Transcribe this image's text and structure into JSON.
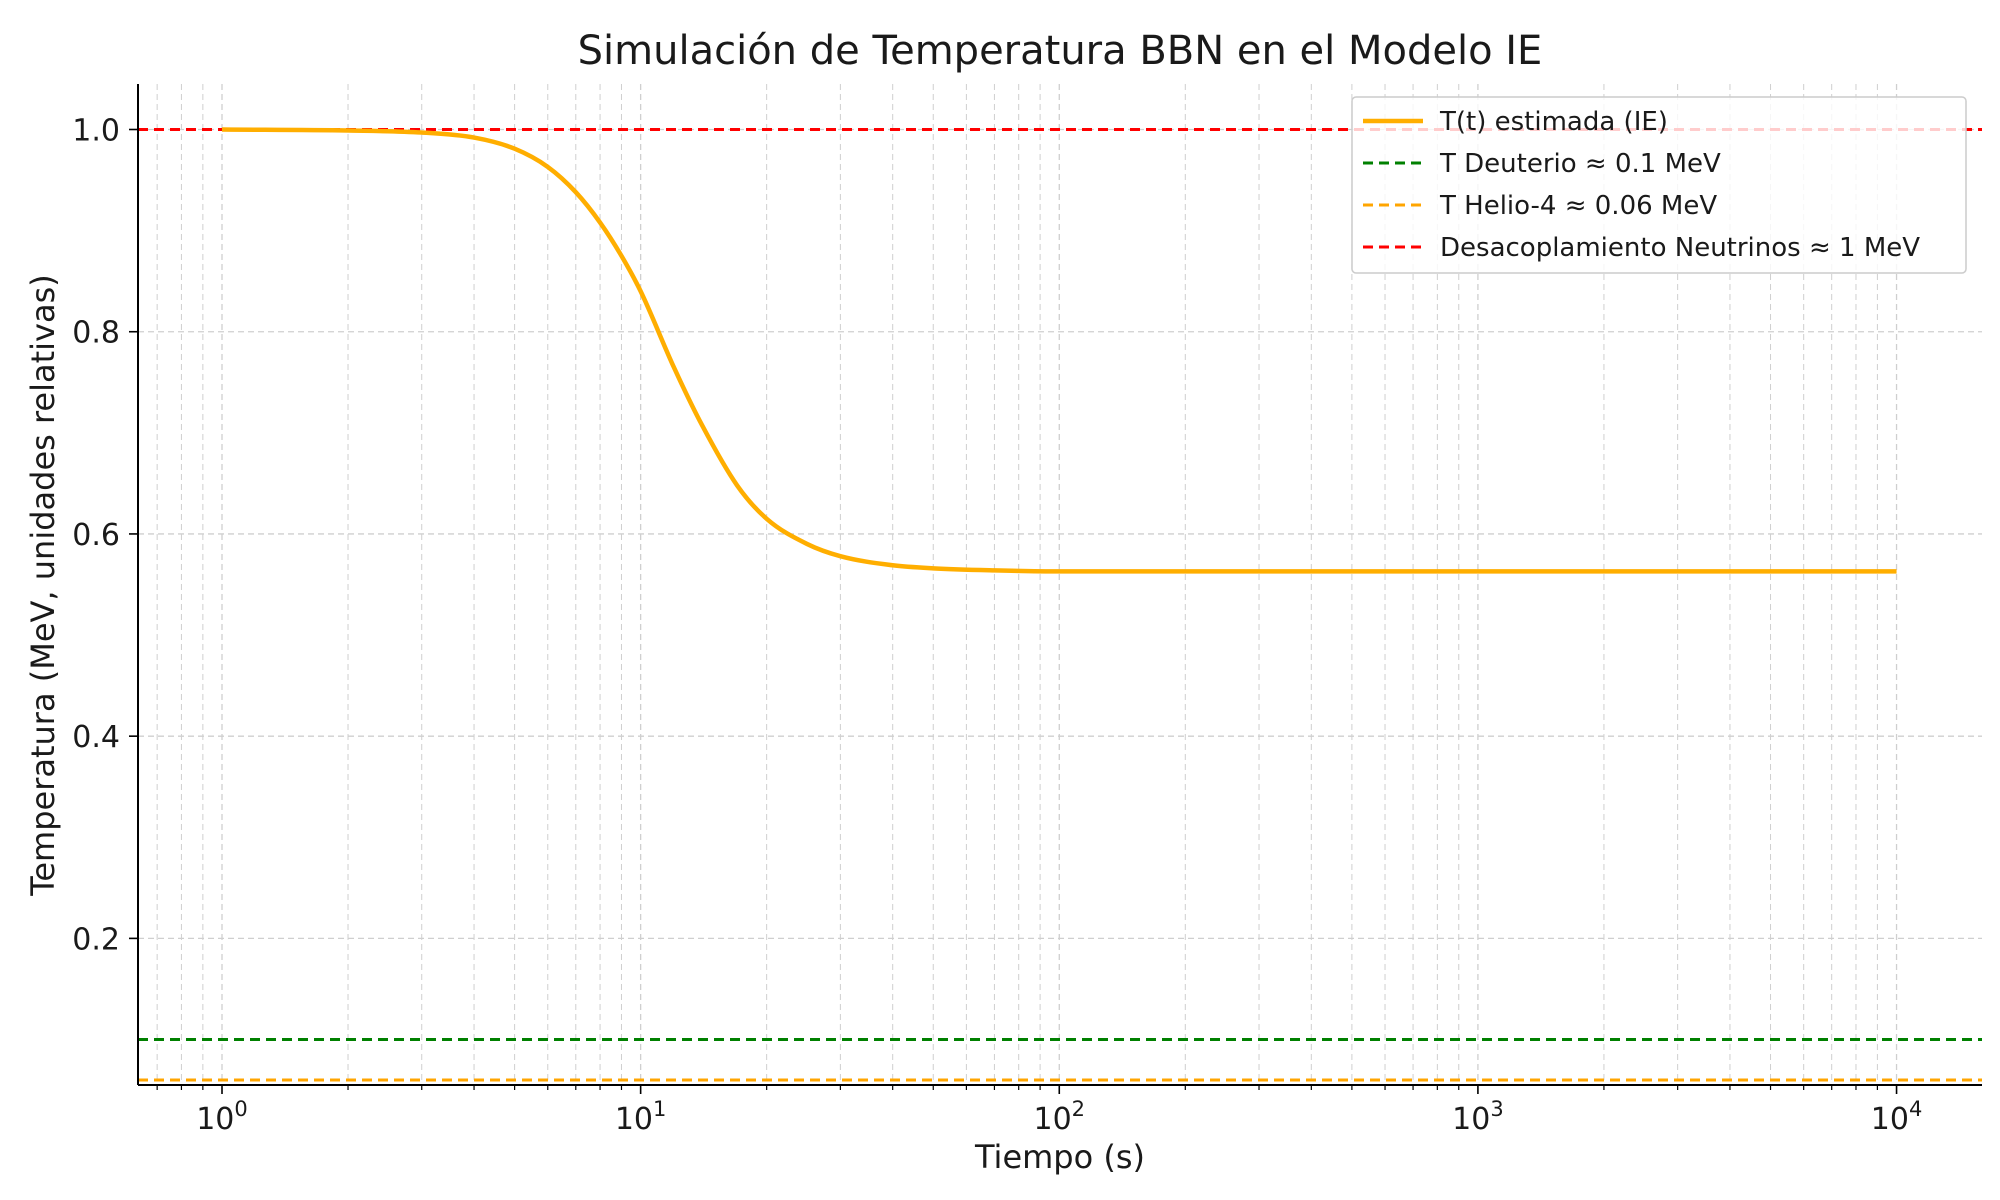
{
  "chart_data": {
    "type": "line",
    "title": "Simulación de Temperatura BBN en el Modelo IE",
    "xlabel": "Tiempo (s)",
    "ylabel": "Temperatura (MeV, unidades relativas)",
    "xscale": "log",
    "xlim": [
      0.63,
      16000
    ],
    "ylim": [
      0.055,
      1.045
    ],
    "x_ticks": [
      {
        "value": 1,
        "base": "10",
        "exp": "0"
      },
      {
        "value": 10,
        "base": "10",
        "exp": "1"
      },
      {
        "value": 100,
        "base": "10",
        "exp": "2"
      },
      {
        "value": 1000,
        "base": "10",
        "exp": "3"
      },
      {
        "value": 10000,
        "base": "10",
        "exp": "4"
      }
    ],
    "y_ticks": [
      {
        "value": 0.2,
        "label": "0.2"
      },
      {
        "value": 0.4,
        "label": "0.4"
      },
      {
        "value": 0.6,
        "label": "0.6"
      },
      {
        "value": 0.8,
        "label": "0.8"
      },
      {
        "value": 1.0,
        "label": "1.0"
      }
    ],
    "grid": true,
    "legend_position": "top-right",
    "series": [
      {
        "name": "T(t) estimada (IE)",
        "style": "solid",
        "color": "#ffae00",
        "x": [
          1,
          2,
          3,
          4,
          5,
          6,
          7,
          8,
          9,
          10,
          12,
          14,
          17,
          20,
          25,
          30,
          40,
          50,
          70,
          100,
          200,
          500,
          1000,
          10000
        ],
        "y": [
          1.0,
          0.999,
          0.997,
          0.992,
          0.981,
          0.963,
          0.938,
          0.908,
          0.875,
          0.84,
          0.765,
          0.708,
          0.648,
          0.615,
          0.59,
          0.578,
          0.569,
          0.566,
          0.564,
          0.563,
          0.563,
          0.563,
          0.563,
          0.563
        ]
      },
      {
        "name": "T Deuterio ≈ 0.1 MeV",
        "style": "dashed",
        "color": "#008000",
        "hline": 0.1
      },
      {
        "name": "T Helio-4 ≈ 0.06 MeV",
        "style": "dashed",
        "color": "#ffa500",
        "hline": 0.06
      },
      {
        "name": "Desacoplamiento Neutrinos ≈ 1 MeV",
        "style": "dashed",
        "color": "#ff0000",
        "hline": 1.0
      }
    ]
  }
}
